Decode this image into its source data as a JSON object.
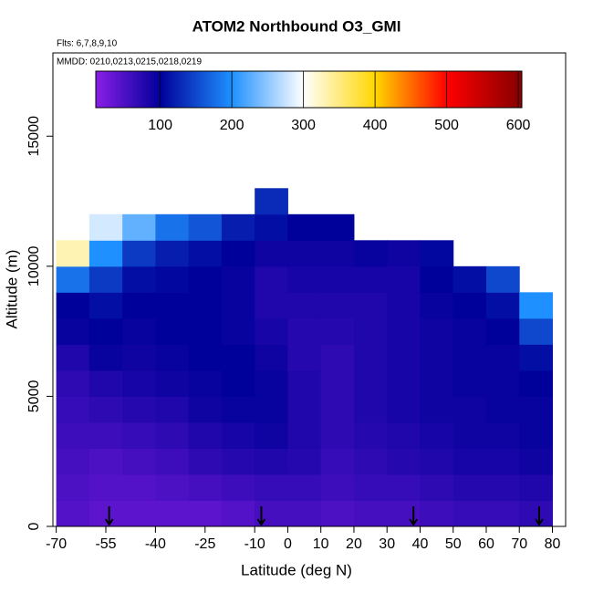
{
  "chart_data": {
    "type": "heatmap",
    "title": "ATOM2 Northbound O3_GMI",
    "subtitle": "Flts: 6,7,8,9,10",
    "annotation": "MMDD: 0210,0213,0215,0218,0219",
    "x_label": "Latitude (deg N)",
    "y_label": "Altitude (m)",
    "xlim": [
      -71,
      84
    ],
    "ylim": [
      0,
      18200
    ],
    "xticks": [
      -70,
      -55,
      -40,
      -25,
      -10,
      0,
      10,
      20,
      30,
      40,
      50,
      60,
      70,
      80
    ],
    "yticks": [
      0,
      5000,
      10000,
      15000
    ],
    "xbins": [
      -70,
      -60,
      -50,
      -40,
      -30,
      -20,
      -10,
      0,
      10,
      20,
      30,
      40,
      50,
      60,
      70,
      80
    ],
    "ybins": [
      0,
      1000,
      2000,
      3000,
      4000,
      5000,
      6000,
      7000,
      8000,
      9000,
      10000,
      11000,
      12000,
      13000
    ],
    "values": [
      [
        45,
        50,
        55,
        60,
        65,
        70,
        80,
        95,
        100,
        180,
        330,
        null,
        null
      ],
      [
        40,
        45,
        50,
        60,
        70,
        80,
        95,
        100,
        110,
        140,
        200,
        280,
        null
      ],
      [
        40,
        45,
        55,
        65,
        75,
        85,
        90,
        95,
        100,
        110,
        140,
        230,
        null
      ],
      [
        40,
        50,
        60,
        70,
        80,
        90,
        95,
        100,
        100,
        105,
        120,
        180,
        null
      ],
      [
        40,
        55,
        70,
        80,
        90,
        95,
        100,
        100,
        100,
        100,
        110,
        160,
        null
      ],
      [
        45,
        60,
        75,
        85,
        95,
        100,
        100,
        95,
        95,
        95,
        100,
        120,
        null
      ],
      [
        55,
        65,
        80,
        90,
        95,
        95,
        90,
        85,
        80,
        80,
        90,
        110,
        130
      ],
      [
        55,
        65,
        75,
        80,
        80,
        80,
        75,
        75,
        80,
        85,
        90,
        100,
        null
      ],
      [
        50,
        60,
        65,
        70,
        70,
        70,
        70,
        75,
        80,
        85,
        90,
        100,
        null
      ],
      [
        55,
        65,
        70,
        75,
        80,
        80,
        80,
        80,
        80,
        85,
        95,
        null,
        null
      ],
      [
        55,
        65,
        75,
        80,
        85,
        85,
        85,
        85,
        85,
        85,
        90,
        null,
        null
      ],
      [
        60,
        70,
        80,
        85,
        90,
        90,
        90,
        90,
        95,
        100,
        105,
        null,
        null
      ],
      [
        65,
        75,
        85,
        90,
        90,
        95,
        95,
        95,
        100,
        110,
        null,
        null,
        null
      ],
      [
        65,
        75,
        85,
        90,
        95,
        95,
        95,
        100,
        110,
        150,
        null,
        null,
        null
      ],
      [
        70,
        80,
        90,
        95,
        95,
        100,
        110,
        150,
        200,
        null,
        null,
        null,
        null
      ]
    ],
    "colorscale": [
      [
        10,
        "#8a1ee6"
      ],
      [
        100,
        "#00009a"
      ],
      [
        200,
        "#1e90ff"
      ],
      [
        300,
        "#ffffff"
      ],
      [
        400,
        "#ffd700"
      ],
      [
        500,
        "#ff0000"
      ],
      [
        600,
        "#8b0000"
      ]
    ],
    "colorbar_lim": [
      10,
      605
    ],
    "colorbar_ticks": [
      100,
      200,
      300,
      400,
      500,
      600
    ],
    "arrows": [
      -54,
      -8,
      38,
      76
    ]
  }
}
